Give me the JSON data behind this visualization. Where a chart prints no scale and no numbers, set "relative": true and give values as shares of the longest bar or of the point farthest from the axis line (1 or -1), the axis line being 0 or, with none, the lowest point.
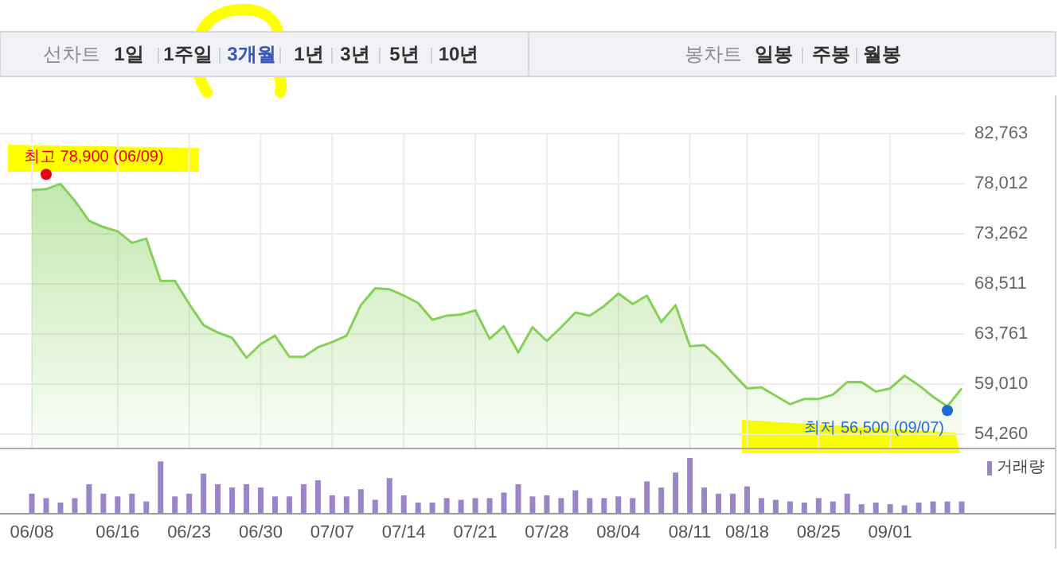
{
  "chart_data": [
    {
      "type": "other",
      "annotations": [
        "선차트",
        "1일",
        "1주일",
        "3개월",
        "1년",
        "3년",
        "5년",
        "10년",
        "봉차트",
        "일봉",
        "주봉",
        "월봉"
      ]
    },
    {
      "type": "area",
      "categories": [
        null,
        null,
        null,
        null,
        null,
        null,
        null,
        null,
        null,
        null,
        null,
        null,
        null,
        null,
        null,
        null,
        null,
        null,
        null,
        null,
        null,
        null,
        null,
        null,
        null,
        null,
        null,
        null,
        null,
        null,
        null,
        null,
        null,
        null,
        null,
        null,
        null,
        null,
        null,
        null,
        null,
        null,
        null,
        null,
        null,
        null,
        null,
        null,
        null,
        null,
        null,
        null,
        null,
        null,
        null,
        null,
        null,
        null,
        null,
        null,
        null,
        null,
        null,
        null,
        null,
        null
      ],
      "series": [
        {
          "type": "scatter",
          "color": "#e8000b",
          "values": [
            null,
            78900,
            null,
            null,
            null,
            null,
            null,
            null,
            null,
            null,
            null,
            null,
            null,
            null,
            null,
            null,
            null,
            null,
            null,
            null,
            null,
            null,
            null,
            null,
            null,
            null,
            null,
            null,
            null,
            null,
            null,
            null,
            null,
            null,
            null,
            null,
            null,
            null,
            null,
            null,
            null,
            null,
            null,
            null,
            null,
            null,
            null,
            null,
            null,
            null,
            null,
            null,
            null,
            null,
            null,
            null,
            null,
            null,
            null,
            null,
            null,
            null,
            null,
            null,
            null,
            null
          ]
        },
        {
          "type": "scatter",
          "color": "#1e6bd6",
          "values": [
            null,
            null,
            null,
            null,
            null,
            null,
            null,
            null,
            null,
            null,
            null,
            null,
            null,
            null,
            null,
            null,
            null,
            null,
            null,
            null,
            null,
            null,
            null,
            null,
            null,
            null,
            null,
            null,
            null,
            null,
            null,
            null,
            null,
            null,
            null,
            null,
            null,
            null,
            null,
            null,
            null,
            null,
            null,
            null,
            null,
            null,
            null,
            null,
            null,
            null,
            null,
            null,
            null,
            null,
            null,
            null,
            null,
            null,
            null,
            null,
            null,
            null,
            null,
            null,
            56500,
            null
          ]
        },
        {
          "color": "#86d05a",
          "values": [
            77400,
            77500,
            78000,
            76400,
            74500,
            73900,
            73500,
            72400,
            72800,
            68800,
            68800,
            66600,
            64600,
            63900,
            63400,
            61500,
            62800,
            63600,
            61600,
            61600,
            62500,
            63000,
            63600,
            66500,
            68100,
            68000,
            67400,
            66700,
            65100,
            65500,
            65600,
            66000,
            63300,
            64500,
            62000,
            64400,
            63100,
            64400,
            65800,
            65500,
            66400,
            67600,
            66600,
            67400,
            64900,
            66500,
            62600,
            62700,
            61500,
            60000,
            58600,
            58700,
            57900,
            57100,
            57600,
            57600,
            58000,
            59200,
            59200,
            58300,
            58600,
            59800,
            58900,
            57800,
            56900,
            58600
          ]
        }
      ],
      "ylim": [
        52900,
        82763
      ],
      "yticks": [
        {
          "value": 82763,
          "label": "82,763"
        },
        {
          "value": 78012,
          "label": "78,012"
        },
        {
          "value": 73262,
          "label": "73,262"
        },
        {
          "value": 68511,
          "label": "68,511"
        },
        {
          "value": 63761,
          "label": "63,761"
        },
        {
          "value": 59010,
          "label": "59,010"
        },
        {
          "value": 54260,
          "label": "54,260"
        }
      ],
      "grid": true,
      "tick_labels": "y",
      "annotations": [
        "최고 78,900 (06/09)",
        "최저 56,500 (09/07)"
      ]
    },
    {
      "type": "bar",
      "relative": true,
      "categories": [
        "06/08",
        null,
        null,
        null,
        null,
        null,
        "06/16",
        null,
        null,
        null,
        null,
        "06/23",
        null,
        null,
        null,
        null,
        "06/30",
        null,
        null,
        null,
        null,
        "07/07",
        null,
        null,
        null,
        null,
        "07/14",
        null,
        null,
        null,
        null,
        "07/21",
        null,
        null,
        null,
        null,
        "07/28",
        null,
        null,
        null,
        null,
        "08/04",
        null,
        null,
        null,
        null,
        "08/11",
        null,
        null,
        null,
        "08/18",
        null,
        null,
        null,
        null,
        "08/25",
        null,
        null,
        null,
        null,
        "09/01",
        null,
        null,
        null,
        null,
        null
      ],
      "series": [
        {
          "name": "거래량",
          "color": "#9a85c8",
          "values": [
            0.36,
            0.28,
            0.2,
            0.28,
            0.53,
            0.36,
            0.31,
            0.36,
            0.22,
            0.94,
            0.31,
            0.36,
            0.72,
            0.53,
            0.47,
            0.53,
            0.47,
            0.31,
            0.31,
            0.53,
            0.6,
            0.33,
            0.31,
            0.44,
            0.25,
            0.64,
            0.33,
            0.2,
            0.2,
            0.28,
            0.25,
            0.28,
            0.28,
            0.38,
            0.53,
            0.31,
            0.33,
            0.28,
            0.42,
            0.28,
            0.28,
            0.31,
            0.28,
            0.58,
            0.47,
            0.74,
            1,
            0.47,
            0.36,
            0.36,
            0.49,
            0.28,
            0.25,
            0.22,
            0.2,
            0.28,
            0.22,
            0.36,
            0.17,
            0.2,
            0.17,
            0.15,
            0.2,
            0.22,
            0.22,
            0.22
          ]
        }
      ],
      "legend": "top right",
      "tick_labels": "x"
    }
  ]
}
